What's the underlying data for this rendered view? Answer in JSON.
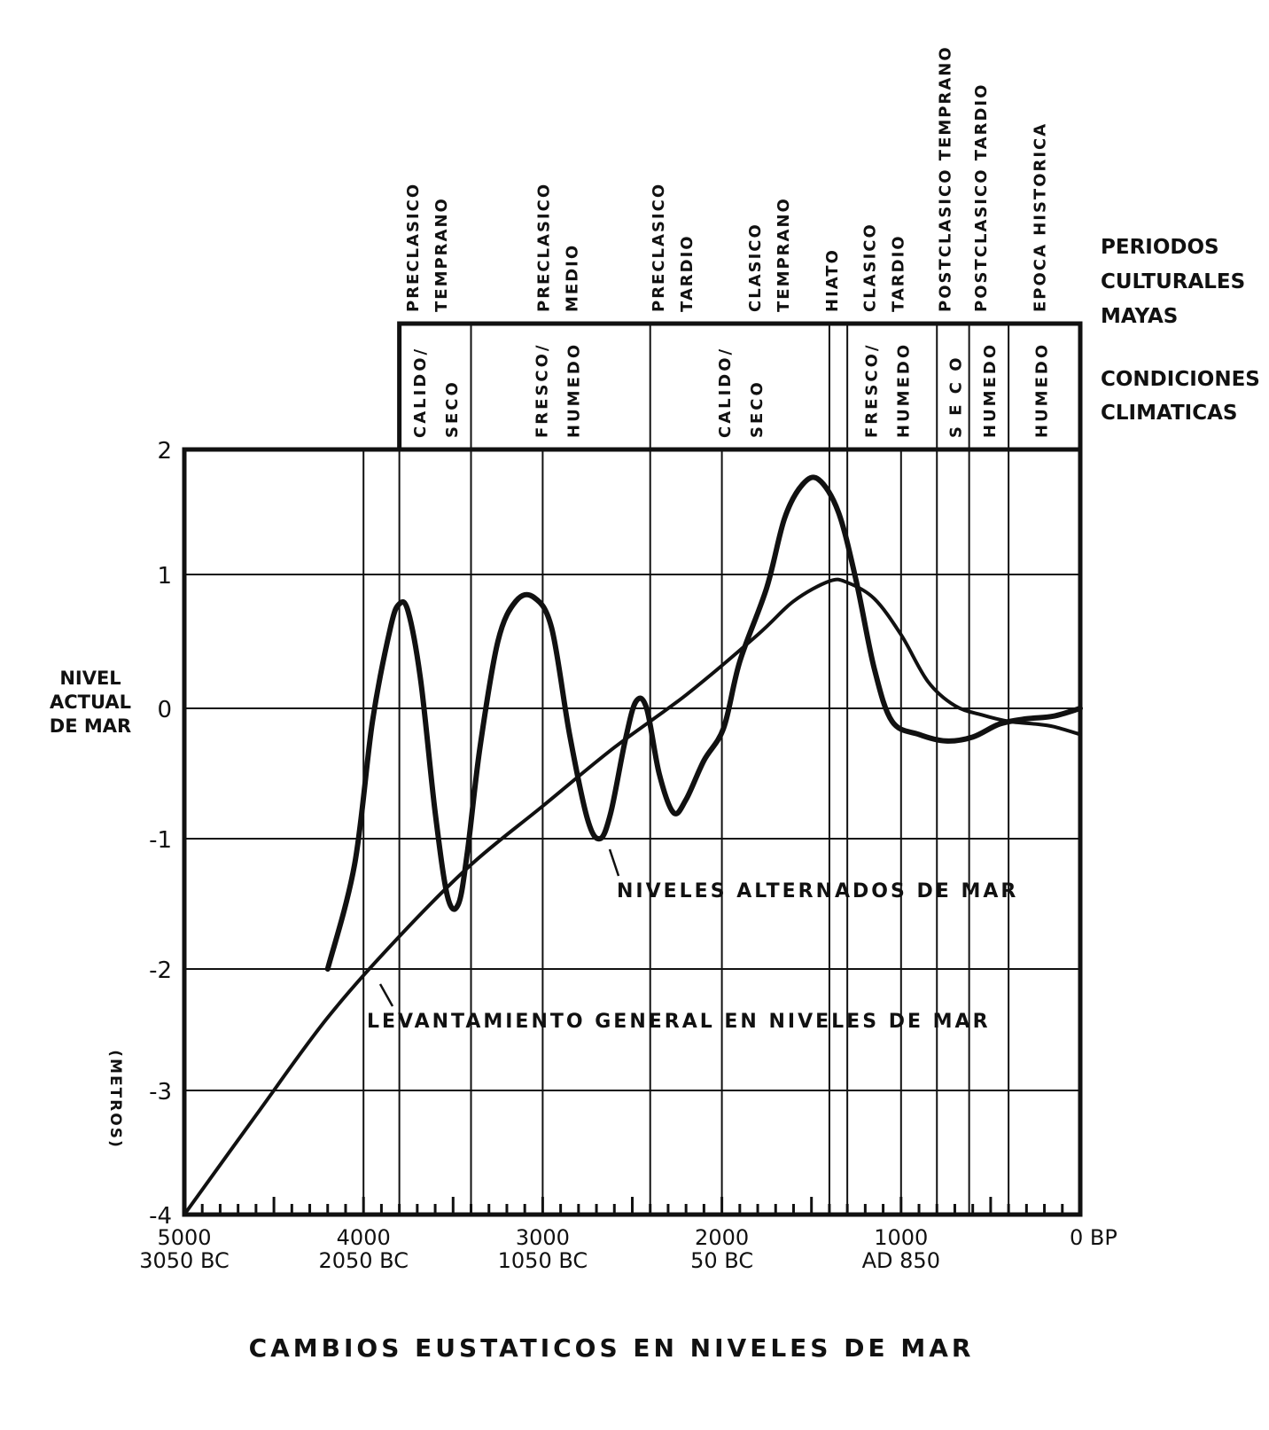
{
  "chart_data": {
    "type": "line",
    "title": "CAMBIOS EUSTATICOS EN NIVELES DE MAR",
    "ylabel_lines": [
      "NIVEL",
      "ACTUAL",
      "DE MAR"
    ],
    "yunit": "(METROS)",
    "ylim": [
      -4,
      2
    ],
    "xlim": [
      5000,
      0
    ],
    "x_major_ticks": [
      {
        "x": 5000,
        "label": "5000",
        "sub": "3050 BC"
      },
      {
        "x": 4000,
        "label": "4000",
        "sub": "2050 BC"
      },
      {
        "x": 3000,
        "label": "3000",
        "sub": "1050 BC"
      },
      {
        "x": 2000,
        "label": "2000",
        "sub": "50 BC"
      },
      {
        "x": 1000,
        "label": "1000",
        "sub": "AD 850"
      },
      {
        "x": 0,
        "label": "0 BP",
        "sub": ""
      }
    ],
    "y_ticks": [
      2,
      1,
      0,
      -1,
      -2,
      -3,
      -4
    ],
    "grid": true,
    "series": [
      {
        "name": "NIVELES ALTERNADOS DE MAR",
        "points": [
          [
            4200,
            -2
          ],
          [
            4050,
            -1.2
          ],
          [
            3950,
            -0.1
          ],
          [
            3850,
            0.6
          ],
          [
            3800,
            0.78
          ],
          [
            3750,
            0.72
          ],
          [
            3680,
            0.2
          ],
          [
            3600,
            -0.8
          ],
          [
            3530,
            -1.45
          ],
          [
            3470,
            -1.5
          ],
          [
            3420,
            -1.1
          ],
          [
            3350,
            -0.3
          ],
          [
            3250,
            0.5
          ],
          [
            3150,
            0.8
          ],
          [
            3050,
            0.83
          ],
          [
            2950,
            0.6
          ],
          [
            2850,
            -0.2
          ],
          [
            2750,
            -0.85
          ],
          [
            2680,
            -1.0
          ],
          [
            2620,
            -0.8
          ],
          [
            2540,
            -0.25
          ],
          [
            2480,
            0.05
          ],
          [
            2420,
            0.0
          ],
          [
            2350,
            -0.5
          ],
          [
            2270,
            -0.8
          ],
          [
            2200,
            -0.7
          ],
          [
            2100,
            -0.4
          ],
          [
            1990,
            -0.15
          ],
          [
            1900,
            0.35
          ],
          [
            1750,
            0.9
          ],
          [
            1650,
            1.45
          ],
          [
            1550,
            1.72
          ],
          [
            1460,
            1.76
          ],
          [
            1350,
            1.5
          ],
          [
            1250,
            0.95
          ],
          [
            1150,
            0.3
          ],
          [
            1050,
            -0.1
          ],
          [
            900,
            -0.2
          ],
          [
            750,
            -0.25
          ],
          [
            600,
            -0.22
          ],
          [
            450,
            -0.12
          ],
          [
            300,
            -0.08
          ],
          [
            150,
            -0.06
          ],
          [
            0,
            0.0
          ]
        ]
      },
      {
        "name": "LEVANTAMIENTO GENERAL EN NIVELES DE MAR",
        "points": [
          [
            5000,
            -4
          ],
          [
            4600,
            -3.2
          ],
          [
            4200,
            -2.4
          ],
          [
            3800,
            -1.75
          ],
          [
            3400,
            -1.2
          ],
          [
            3000,
            -0.75
          ],
          [
            2600,
            -0.3
          ],
          [
            2200,
            0.1
          ],
          [
            1800,
            0.55
          ],
          [
            1600,
            0.8
          ],
          [
            1400,
            0.95
          ],
          [
            1300,
            0.94
          ],
          [
            1150,
            0.82
          ],
          [
            1000,
            0.55
          ],
          [
            850,
            0.2
          ],
          [
            700,
            0.02
          ],
          [
            550,
            -0.05
          ],
          [
            400,
            -0.1
          ],
          [
            250,
            -0.12
          ],
          [
            150,
            -0.14
          ],
          [
            0,
            -0.2
          ]
        ]
      }
    ],
    "series_labels": [
      "NIVELES ALTERNADOS DE MAR",
      "LEVANTAMIENTO GENERAL EN NIVELES DE MAR"
    ],
    "cultural_header": [
      "PERIODOS",
      "CULTURALES",
      "MAYAS"
    ],
    "climate_header": [
      "CONDICIONES",
      "CLIMATICAS"
    ],
    "cultural_periods": [
      {
        "lines": [
          "PRECLASICO",
          "TEMPRANO"
        ],
        "x": 3650
      },
      {
        "lines": [
          "PRECLASICO",
          "MEDIO"
        ],
        "x": 2920
      },
      {
        "lines": [
          "PRECLASICO",
          "TARDIO"
        ],
        "x": 2280
      },
      {
        "lines": [
          "CLASICO",
          "TEMPRANO"
        ],
        "x": 1740
      },
      {
        "lines": [
          "HIATO"
        ],
        "x": 1390
      },
      {
        "lines": [
          "CLASICO",
          "TARDIO"
        ],
        "x": 1100
      },
      {
        "lines": [
          "POSTCLASICO TEMPRANO"
        ],
        "x": 760
      },
      {
        "lines": [
          "POSTCLASICO TARDIO"
        ],
        "x": 560
      },
      {
        "lines": [
          "EPOCA HISTORICA"
        ],
        "x": 230
      }
    ],
    "period_boundaries": [
      3800,
      3400,
      2400,
      1400,
      1300,
      800,
      620,
      400
    ],
    "climate_conditions": [
      {
        "lines": [
          "CALIDO/",
          "SECO"
        ],
        "x": 3600
      },
      {
        "lines": [
          "FRESCO/",
          "HUMEDO"
        ],
        "x": 2920
      },
      {
        "lines": [
          "CALIDO/",
          "SECO"
        ],
        "x": 1900
      },
      {
        "lines": [
          "FRESCO/",
          "HUMEDO"
        ],
        "x": 1080
      },
      {
        "lines": [
          "S E C O"
        ],
        "x": 700
      },
      {
        "lines": [
          "HUMEDO"
        ],
        "x": 510
      },
      {
        "lines": [
          "HUMEDO"
        ],
        "x": 220
      }
    ]
  }
}
